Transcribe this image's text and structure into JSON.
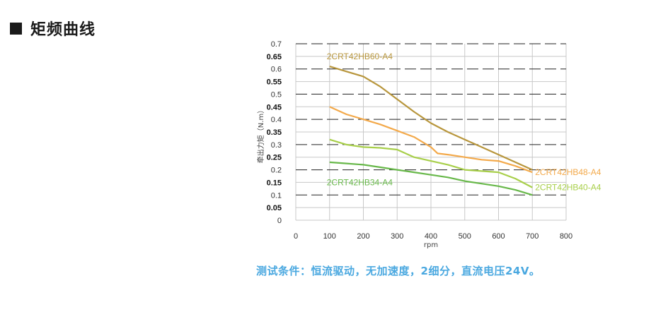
{
  "heading": {
    "title": "矩频曲线"
  },
  "footnote": "测试条件：恒流驱动，无加速度，2细分，直流电压24V。",
  "chart_data": {
    "type": "line",
    "title": "",
    "xlabel": "rpm",
    "ylabel": "牵出力矩（N.m）",
    "xlim": [
      0,
      800
    ],
    "ylim": [
      0,
      0.7
    ],
    "x_ticks": [
      "0",
      "100",
      "200",
      "300",
      "400",
      "500",
      "600",
      "700",
      "800"
    ],
    "y_ticks": [
      "0",
      "0.05",
      "0.1",
      "0.15",
      "0.2",
      "0.25",
      "0.3",
      "0.35",
      "0.4",
      "0.45",
      "0.5",
      "0.55",
      "0.6",
      "0.65",
      "0.7"
    ],
    "bold_y_ticks": [
      "0.05",
      "0.15",
      "0.25",
      "0.35",
      "0.45",
      "0.55",
      "0.65"
    ],
    "grid": "vertical lines every 100 rpm; solid horizontal lines at 0.05 steps, dashed at 0.1 steps",
    "series": [
      {
        "name": "2CRT42HB60-A4",
        "color": "#b8963c",
        "label_position": "top-left",
        "points": [
          [
            100,
            0.61
          ],
          [
            150,
            0.59
          ],
          [
            200,
            0.57
          ],
          [
            250,
            0.53
          ],
          [
            300,
            0.48
          ],
          [
            350,
            0.43
          ],
          [
            400,
            0.385
          ],
          [
            450,
            0.35
          ],
          [
            500,
            0.32
          ],
          [
            550,
            0.29
          ],
          [
            600,
            0.26
          ],
          [
            650,
            0.23
          ],
          [
            700,
            0.2
          ]
        ]
      },
      {
        "name": "2CRT42HB48-A4",
        "color": "#f3a94a",
        "label_position": "right",
        "points": [
          [
            100,
            0.45
          ],
          [
            150,
            0.42
          ],
          [
            200,
            0.4
          ],
          [
            250,
            0.38
          ],
          [
            300,
            0.355
          ],
          [
            350,
            0.33
          ],
          [
            400,
            0.29
          ],
          [
            420,
            0.265
          ],
          [
            450,
            0.26
          ],
          [
            500,
            0.25
          ],
          [
            550,
            0.24
          ],
          [
            600,
            0.235
          ],
          [
            650,
            0.215
          ],
          [
            700,
            0.19
          ]
        ]
      },
      {
        "name": "2CRT42HB40-A4",
        "color": "#a8cf4a",
        "label_position": "right",
        "points": [
          [
            100,
            0.32
          ],
          [
            150,
            0.3
          ],
          [
            200,
            0.29
          ],
          [
            250,
            0.287
          ],
          [
            300,
            0.28
          ],
          [
            350,
            0.25
          ],
          [
            400,
            0.235
          ],
          [
            450,
            0.22
          ],
          [
            500,
            0.2
          ],
          [
            550,
            0.195
          ],
          [
            600,
            0.19
          ],
          [
            650,
            0.165
          ],
          [
            700,
            0.13
          ]
        ]
      },
      {
        "name": "2CRT42HB34-A4",
        "color": "#68b84a",
        "label_position": "left",
        "points": [
          [
            100,
            0.23
          ],
          [
            150,
            0.225
          ],
          [
            200,
            0.22
          ],
          [
            250,
            0.21
          ],
          [
            300,
            0.2
          ],
          [
            350,
            0.19
          ],
          [
            400,
            0.18
          ],
          [
            450,
            0.17
          ],
          [
            500,
            0.155
          ],
          [
            550,
            0.145
          ],
          [
            600,
            0.135
          ],
          [
            650,
            0.12
          ],
          [
            700,
            0.1
          ]
        ]
      }
    ]
  }
}
